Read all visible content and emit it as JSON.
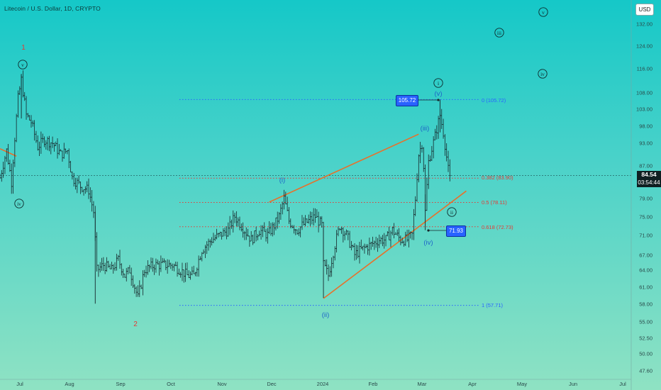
{
  "symbol_line": "Litecoin / U.S. Dollar, 1D, CRYPTO",
  "currency_button": "USD",
  "current_price": "84.54",
  "countdown": "03:54:44",
  "price_scale": [
    "132.00",
    "124.00",
    "116.00",
    "108.00",
    "103.00",
    "98.00",
    "93.00",
    "87.00",
    "84.54",
    "79.00",
    "75.00",
    "71.00",
    "67.00",
    "64.00",
    "61.00",
    "58.00",
    "55.00",
    "52.50",
    "50.00",
    "47.60"
  ],
  "time_scale": [
    "Jul",
    "Aug",
    "Sep",
    "Oct",
    "Nov",
    "Dec",
    "2024",
    "Feb",
    "Mar",
    "Apr",
    "May",
    "Jun",
    "Jul"
  ],
  "colors": {
    "bg_top": "#15c8c8",
    "bg_bottom": "#8fe2c3",
    "wave_blue": "#1e64c8",
    "wave_red": "#e53935",
    "trend": "#e8702a",
    "fib_blue": "#2962ff",
    "fib_red": "#e53935",
    "label_box": "#2962ff"
  },
  "labels": {
    "high_box": "105.72",
    "low_box": "71.93"
  },
  "fib_labels": [
    "0 (105.72)",
    "0.382 (83.90)",
    "0.5 (78.11)",
    "0.618 (72.73)",
    "1 (57.71)"
  ],
  "wave_labels": {
    "red": [
      "1",
      "2"
    ],
    "blue": [
      "(i)",
      "(ii)",
      "(iii)",
      "(iv)",
      "(v)"
    ],
    "circled": [
      "v",
      "iv",
      "i",
      "ii",
      "iii",
      "iv",
      "v"
    ]
  },
  "chart_data": {
    "type": "ohlc",
    "title": "Litecoin / U.S. Dollar, 1D, CRYPTO",
    "x_range": [
      "2023-06-20",
      "2024-07-25"
    ],
    "ylim": [
      47.6,
      138
    ],
    "y_scale": "log",
    "grid": false,
    "last_price": 84.54,
    "fibonacci_levels": [
      {
        "ratio": 0,
        "price": 105.72
      },
      {
        "ratio": 0.382,
        "price": 83.9
      },
      {
        "ratio": 0.5,
        "price": 78.11
      },
      {
        "ratio": 0.618,
        "price": 72.73
      },
      {
        "ratio": 1,
        "price": 57.71
      }
    ],
    "trendlines": [
      {
        "from": [
          "2023-12-01",
          78.2
        ],
        "to": [
          "2024-03-01",
          95.5
        ]
      },
      {
        "from": [
          "2024-01-03",
          58.9
        ],
        "to": [
          "2024-03-30",
          80.8
        ]
      },
      {
        "from": [
          "2023-06-20",
          91.5
        ],
        "to": [
          "2023-06-30",
          89.5
        ]
      }
    ],
    "path": [
      [
        "2023-06-20",
        84
      ],
      [
        "2023-06-24",
        91
      ],
      [
        "2023-06-27",
        83
      ],
      [
        "2023-07-01",
        106
      ],
      [
        "2023-07-03",
        112
      ],
      [
        "2023-07-06",
        101
      ],
      [
        "2023-07-09",
        99
      ],
      [
        "2023-07-13",
        92
      ],
      [
        "2023-07-17",
        94
      ],
      [
        "2023-07-22",
        93
      ],
      [
        "2023-07-27",
        90
      ],
      [
        "2023-07-31",
        91
      ],
      [
        "2023-08-03",
        84
      ],
      [
        "2023-08-08",
        82
      ],
      [
        "2023-08-13",
        81
      ],
      [
        "2023-08-16",
        76
      ],
      [
        "2023-08-18",
        64
      ],
      [
        "2023-08-22",
        65
      ],
      [
        "2023-08-27",
        64
      ],
      [
        "2023-08-31",
        66
      ],
      [
        "2023-09-04",
        63
      ],
      [
        "2023-09-07",
        64
      ],
      [
        "2023-09-10",
        61
      ],
      [
        "2023-09-12",
        59
      ],
      [
        "2023-09-16",
        64
      ],
      [
        "2023-09-22",
        65
      ],
      [
        "2023-09-28",
        65
      ],
      [
        "2023-10-03",
        65
      ],
      [
        "2023-10-08",
        64
      ],
      [
        "2023-10-12",
        63
      ],
      [
        "2023-10-16",
        63
      ],
      [
        "2023-10-21",
        68
      ],
      [
        "2023-10-27",
        70
      ],
      [
        "2023-11-01",
        71
      ],
      [
        "2023-11-06",
        72
      ],
      [
        "2023-11-10",
        75
      ],
      [
        "2023-11-14",
        73
      ],
      [
        "2023-11-20",
        70
      ],
      [
        "2023-11-25",
        72
      ],
      [
        "2023-11-30",
        71
      ],
      [
        "2023-12-04",
        73
      ],
      [
        "2023-12-07",
        75
      ],
      [
        "2023-12-10",
        79
      ],
      [
        "2023-12-13",
        74
      ],
      [
        "2023-12-18",
        72
      ],
      [
        "2023-12-21",
        73
      ],
      [
        "2023-12-25",
        74
      ],
      [
        "2023-12-29",
        75
      ],
      [
        "2024-01-02",
        73
      ],
      [
        "2024-01-03",
        65
      ],
      [
        "2024-01-06",
        63
      ],
      [
        "2024-01-10",
        69
      ],
      [
        "2024-01-13",
        73
      ],
      [
        "2024-01-17",
        71
      ],
      [
        "2024-01-22",
        67
      ],
      [
        "2024-01-26",
        68
      ],
      [
        "2024-02-01",
        69
      ],
      [
        "2024-02-06",
        70
      ],
      [
        "2024-02-10",
        70
      ],
      [
        "2024-02-14",
        72
      ],
      [
        "2024-02-19",
        70
      ],
      [
        "2024-02-23",
        70
      ],
      [
        "2024-02-26",
        71
      ],
      [
        "2024-02-28",
        79
      ],
      [
        "2024-03-01",
        90
      ],
      [
        "2024-03-03",
        93
      ],
      [
        "2024-03-04",
        87
      ],
      [
        "2024-03-05",
        76
      ],
      [
        "2024-03-07",
        88
      ],
      [
        "2024-03-11",
        95
      ],
      [
        "2024-03-14",
        101
      ],
      [
        "2024-03-16",
        96
      ],
      [
        "2024-03-19",
        86
      ],
      [
        "2024-03-20",
        84.54
      ]
    ]
  }
}
